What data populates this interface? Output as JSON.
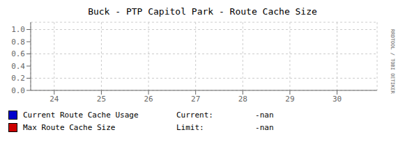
{
  "chart_data": {
    "type": "line",
    "title": "Buck - PTP Capitol Park - Route Cache Size",
    "series": [
      {
        "name": "Current Route Cache Usage",
        "color": "#0000cc",
        "values": [],
        "annotations": [
          "Current:",
          "     -nan"
        ]
      },
      {
        "name": "Max Route Cache Size",
        "color": "#cc0000",
        "values": [],
        "annotations": [
          "Limit:",
          "     -nan"
        ]
      }
    ],
    "x": [],
    "xlim": [
      23.5,
      30.85
    ],
    "ylim": [
      0.0,
      1.12
    ],
    "xticks": [
      24,
      25,
      26,
      27,
      28,
      29,
      30
    ],
    "yticks": [
      {
        "value": 0,
        "label": "0.0"
      },
      0.2,
      0.4,
      0.6,
      0.8,
      {
        "value": 1,
        "label": "1.0"
      }
    ],
    "grid": true,
    "legend": "bottom",
    "annotations": [
      "RRDTOOL / TOBI OETIKER"
    ]
  }
}
